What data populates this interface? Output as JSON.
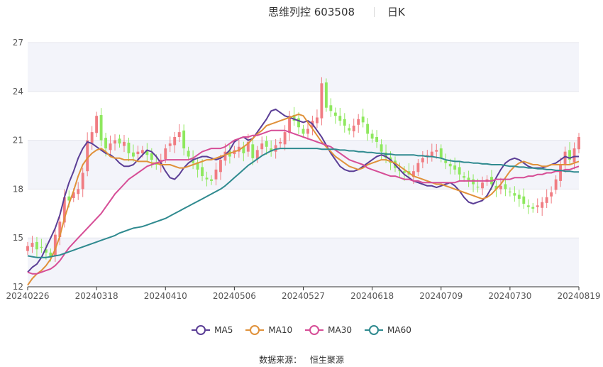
{
  "header": {
    "title": "思维列控 603508",
    "period": "日K"
  },
  "legend": [
    {
      "name": "MA5",
      "color": "#5b3e96"
    },
    {
      "name": "MA10",
      "color": "#e0913a"
    },
    {
      "name": "MA30",
      "color": "#d64d96"
    },
    {
      "name": "MA60",
      "color": "#2f8a8f"
    }
  ],
  "source": {
    "label": "数据来源：",
    "value": "恒生聚源"
  },
  "chart_data": {
    "type": "candlestick",
    "x_ticks": [
      "20240226",
      "20240318",
      "20240410",
      "20240506",
      "20240527",
      "20240618",
      "20240709",
      "20240730",
      "20240819"
    ],
    "y_ticks": [
      12,
      15,
      18,
      21,
      24,
      27
    ],
    "ylim": [
      12,
      27
    ],
    "n_days": 121,
    "up_color": "#f07c82",
    "down_color": "#8ee85e",
    "close": [
      14.5,
      14.7,
      14.3,
      14.4,
      14.1,
      13.8,
      15.2,
      16.0,
      17.5,
      17.3,
      17.8,
      18.0,
      19.0,
      21.0,
      21.5,
      22.5,
      21.0,
      20.5,
      20.8,
      21.0,
      20.8,
      20.9,
      20.2,
      20.0,
      20.3,
      20.4,
      20.1,
      19.8,
      19.5,
      19.8,
      20.5,
      20.8,
      21.2,
      21.5,
      20.5,
      20.0,
      19.6,
      19.2,
      18.8,
      18.6,
      18.5,
      19.2,
      19.8,
      20.3,
      20.0,
      20.4,
      20.6,
      20.2,
      20.9,
      19.9,
      20.4,
      20.8,
      20.6,
      20.3,
      20.7,
      20.9,
      21.5,
      22.5,
      22.2,
      21.8,
      21.4,
      21.7,
      22.2,
      22.4,
      24.5,
      23.0,
      22.8,
      22.5,
      22.2,
      21.9,
      21.6,
      21.9,
      22.3,
      22.1,
      21.4,
      21.1,
      20.9,
      20.3,
      19.9,
      19.6,
      19.3,
      19.1,
      19.0,
      18.9,
      19.1,
      19.6,
      19.9,
      20.1,
      20.3,
      20.4,
      19.9,
      19.6,
      19.4,
      19.2,
      18.9,
      18.7,
      18.5,
      18.3,
      18.1,
      18.4,
      18.6,
      18.3,
      18.0,
      18.2,
      18.0,
      17.8,
      17.6,
      17.4,
      17.1,
      16.9,
      16.8,
      17.0,
      17.2,
      17.5,
      17.8,
      18.6,
      19.5,
      20.3,
      19.8,
      20.5,
      21.2
    ],
    "series": [
      {
        "name": "MA5",
        "color": "#5b3e96",
        "values": [
          12.9,
          13.2,
          13.4,
          13.8,
          14.4,
          15.0,
          15.6,
          16.4,
          17.5,
          18.4,
          19.1,
          19.9,
          20.5,
          20.9,
          20.8,
          20.6,
          20.4,
          20.2,
          20.1,
          19.9,
          19.6,
          19.4,
          19.4,
          19.5,
          19.8,
          20.1,
          20.4,
          20.3,
          20.0,
          19.6,
          19.1,
          18.7,
          18.6,
          18.9,
          19.3,
          19.6,
          19.8,
          19.9,
          20.0,
          20.0,
          19.9,
          19.8,
          19.9,
          20.1,
          20.4,
          20.9,
          21.1,
          21.2,
          21.0,
          21.1,
          21.5,
          21.9,
          22.3,
          22.8,
          22.9,
          22.7,
          22.5,
          22.4,
          22.3,
          22.2,
          22.1,
          22.2,
          22.0,
          21.6,
          21.2,
          20.7,
          20.2,
          19.8,
          19.4,
          19.2,
          19.1,
          19.1,
          19.2,
          19.4,
          19.6,
          19.8,
          20.0,
          20.1,
          20.0,
          19.8,
          19.5,
          19.2,
          18.9,
          18.7,
          18.5,
          18.4,
          18.3,
          18.2,
          18.2,
          18.1,
          18.2,
          18.3,
          18.4,
          18.2,
          17.9,
          17.5,
          17.2,
          17.1,
          17.2,
          17.3,
          17.6,
          18.1,
          18.7,
          19.2,
          19.6,
          19.8,
          19.9,
          19.8,
          19.6,
          19.4,
          19.3,
          19.3,
          19.3,
          19.4,
          19.5,
          19.6,
          19.8,
          20.0,
          19.9,
          20.0,
          20.0
        ]
      },
      {
        "name": "MA10",
        "color": "#e0913a",
        "values": [
          12.1,
          12.5,
          12.8,
          13.0,
          13.3,
          13.7,
          14.3,
          15.1,
          16.2,
          17.1,
          17.9,
          18.8,
          19.5,
          19.9,
          20.2,
          20.4,
          20.5,
          20.3,
          20.0,
          19.9,
          19.9,
          19.8,
          19.8,
          19.8,
          19.7,
          19.7,
          19.7,
          19.6,
          19.6,
          19.5,
          19.5,
          19.5,
          19.4,
          19.3,
          19.3,
          19.4,
          19.5,
          19.6,
          19.7,
          19.8,
          19.8,
          19.9,
          20.0,
          20.1,
          20.2,
          20.3,
          20.4,
          20.6,
          20.8,
          21.1,
          21.4,
          21.6,
          21.9,
          22.0,
          22.1,
          22.2,
          22.3,
          22.4,
          22.5,
          22.6,
          22.5,
          22.1,
          21.7,
          21.3,
          20.9,
          20.6,
          20.3,
          20.0,
          19.8,
          19.6,
          19.4,
          19.3,
          19.2,
          19.3,
          19.5,
          19.6,
          19.7,
          19.8,
          19.8,
          19.7,
          19.6,
          19.4,
          19.2,
          19.0,
          18.8,
          18.7,
          18.6,
          18.5,
          18.4,
          18.3,
          18.3,
          18.2,
          18.1,
          18.0,
          17.9,
          17.8,
          17.7,
          17.6,
          17.5,
          17.4,
          17.5,
          17.7,
          18.0,
          18.3,
          18.7,
          19.1,
          19.4,
          19.6,
          19.7,
          19.6,
          19.5,
          19.5,
          19.4,
          19.4,
          19.5,
          19.5,
          19.5,
          19.5,
          19.5,
          19.6,
          19.7
        ]
      },
      {
        "name": "MA30",
        "color": "#d64d96",
        "values": [
          12.9,
          12.8,
          12.8,
          12.9,
          13.0,
          13.1,
          13.3,
          13.6,
          14.0,
          14.4,
          14.7,
          15.0,
          15.3,
          15.6,
          15.9,
          16.2,
          16.5,
          16.9,
          17.3,
          17.7,
          18.0,
          18.3,
          18.6,
          18.8,
          19.0,
          19.2,
          19.4,
          19.5,
          19.6,
          19.7,
          19.8,
          19.8,
          19.8,
          19.8,
          19.8,
          19.8,
          19.9,
          20.1,
          20.3,
          20.4,
          20.5,
          20.5,
          20.5,
          20.6,
          20.8,
          21.0,
          21.1,
          21.2,
          21.2,
          21.3,
          21.3,
          21.4,
          21.5,
          21.6,
          21.6,
          21.6,
          21.6,
          21.5,
          21.4,
          21.3,
          21.2,
          21.1,
          21.0,
          20.9,
          20.8,
          20.7,
          20.6,
          20.4,
          20.2,
          20.0,
          19.8,
          19.7,
          19.6,
          19.5,
          19.3,
          19.2,
          19.1,
          19.0,
          18.9,
          18.8,
          18.8,
          18.7,
          18.6,
          18.6,
          18.5,
          18.5,
          18.4,
          18.4,
          18.4,
          18.4,
          18.4,
          18.4,
          18.4,
          18.4,
          18.5,
          18.5,
          18.5,
          18.5,
          18.5,
          18.5,
          18.5,
          18.5,
          18.6,
          18.6,
          18.6,
          18.6,
          18.7,
          18.7,
          18.7,
          18.8,
          18.8,
          18.9,
          18.9,
          19.0,
          19.0,
          19.1,
          19.1,
          19.2,
          19.2,
          19.3,
          19.4
        ]
      },
      {
        "name": "MA60",
        "color": "#2f8a8f",
        "values": [
          13.9,
          13.85,
          13.8,
          13.8,
          13.8,
          13.85,
          13.9,
          13.95,
          14.05,
          14.15,
          14.25,
          14.35,
          14.45,
          14.55,
          14.65,
          14.75,
          14.85,
          14.95,
          15.05,
          15.15,
          15.3,
          15.4,
          15.5,
          15.6,
          15.65,
          15.7,
          15.8,
          15.9,
          16.0,
          16.1,
          16.2,
          16.35,
          16.5,
          16.65,
          16.8,
          16.95,
          17.1,
          17.25,
          17.4,
          17.55,
          17.7,
          17.85,
          18.0,
          18.2,
          18.45,
          18.7,
          18.95,
          19.2,
          19.45,
          19.65,
          19.85,
          20.05,
          20.2,
          20.35,
          20.45,
          20.5,
          20.5,
          20.5,
          20.5,
          20.5,
          20.5,
          20.5,
          20.5,
          20.5,
          20.45,
          20.45,
          20.45,
          20.45,
          20.4,
          20.4,
          20.35,
          20.35,
          20.3,
          20.3,
          20.25,
          20.25,
          20.2,
          20.2,
          20.15,
          20.15,
          20.1,
          20.1,
          20.1,
          20.1,
          20.1,
          20.05,
          20.05,
          20.0,
          20.0,
          19.95,
          19.9,
          19.8,
          19.75,
          19.7,
          19.7,
          19.65,
          19.65,
          19.6,
          19.6,
          19.55,
          19.55,
          19.5,
          19.5,
          19.5,
          19.45,
          19.4,
          19.4,
          19.35,
          19.35,
          19.3,
          19.3,
          19.25,
          19.25,
          19.2,
          19.2,
          19.15,
          19.15,
          19.1,
          19.1,
          19.05,
          19.05
        ]
      }
    ]
  }
}
